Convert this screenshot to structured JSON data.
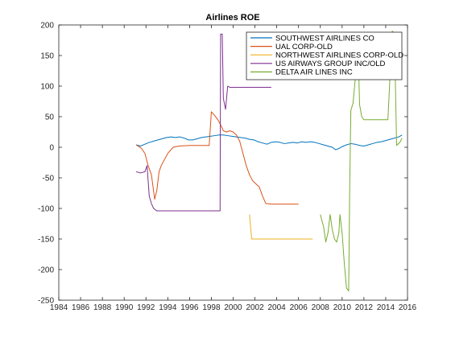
{
  "chart_data": {
    "type": "line",
    "title": "Airlines ROE",
    "xlabel": "",
    "ylabel": "",
    "xlim": [
      1984,
      2016
    ],
    "ylim": [
      -250,
      200
    ],
    "x_ticks": [
      1984,
      1986,
      1988,
      1990,
      1992,
      1994,
      1996,
      1998,
      2000,
      2002,
      2004,
      2006,
      2008,
      2010,
      2012,
      2014,
      2016
    ],
    "y_ticks": [
      -250,
      -200,
      -150,
      -100,
      -50,
      0,
      50,
      100,
      150,
      200
    ],
    "grid": false,
    "legend_position": "top-right",
    "series": [
      {
        "name": "SOUTHWEST AIRLINES CO",
        "color": "#0072bd",
        "points": [
          [
            1991.1,
            4
          ],
          [
            1991.5,
            2
          ],
          [
            1991.9,
            5
          ],
          [
            1992.3,
            8
          ],
          [
            1992.7,
            10
          ],
          [
            1993.1,
            12
          ],
          [
            1993.5,
            14
          ],
          [
            1993.9,
            16
          ],
          [
            1994.3,
            17
          ],
          [
            1994.7,
            16
          ],
          [
            1995.1,
            17
          ],
          [
            1995.5,
            15
          ],
          [
            1995.9,
            12
          ],
          [
            1996.3,
            12
          ],
          [
            1996.7,
            14
          ],
          [
            1997.1,
            16
          ],
          [
            1997.5,
            17
          ],
          [
            1997.9,
            18
          ],
          [
            1998.3,
            19
          ],
          [
            1998.7,
            20
          ],
          [
            1999.1,
            20
          ],
          [
            1999.5,
            19
          ],
          [
            1999.9,
            18
          ],
          [
            2000.3,
            17
          ],
          [
            2000.7,
            16
          ],
          [
            2001.1,
            15
          ],
          [
            2001.5,
            13
          ],
          [
            2001.9,
            12
          ],
          [
            2002.3,
            9
          ],
          [
            2002.7,
            7
          ],
          [
            2003.1,
            5
          ],
          [
            2003.5,
            8
          ],
          [
            2003.9,
            9
          ],
          [
            2004.3,
            8
          ],
          [
            2004.7,
            6
          ],
          [
            2005.1,
            7
          ],
          [
            2005.5,
            8
          ],
          [
            2005.9,
            7
          ],
          [
            2006.3,
            9
          ],
          [
            2006.7,
            8
          ],
          [
            2007.1,
            9
          ],
          [
            2007.5,
            8
          ],
          [
            2007.9,
            6
          ],
          [
            2008.3,
            4
          ],
          [
            2008.7,
            2
          ],
          [
            2009.1,
            0
          ],
          [
            2009.4,
            -4
          ],
          [
            2009.7,
            -2
          ],
          [
            2010.0,
            1
          ],
          [
            2010.4,
            4
          ],
          [
            2010.8,
            6
          ],
          [
            2011.2,
            5
          ],
          [
            2011.6,
            3
          ],
          [
            2012.0,
            2
          ],
          [
            2012.4,
            4
          ],
          [
            2012.8,
            6
          ],
          [
            2013.2,
            8
          ],
          [
            2013.6,
            9
          ],
          [
            2014.0,
            11
          ],
          [
            2014.4,
            13
          ],
          [
            2014.8,
            15
          ],
          [
            2015.2,
            17
          ],
          [
            2015.5,
            20
          ]
        ]
      },
      {
        "name": "UAL CORP-OLD",
        "color": "#d95319",
        "points": [
          [
            1991.1,
            4
          ],
          [
            1991.6,
            -2
          ],
          [
            1991.9,
            -10
          ],
          [
            1992.2,
            -30
          ],
          [
            1992.5,
            -45
          ],
          [
            1992.8,
            -85
          ],
          [
            1993.0,
            -70
          ],
          [
            1993.2,
            -40
          ],
          [
            1993.4,
            -30
          ],
          [
            1993.7,
            -20
          ],
          [
            1994.0,
            -10
          ],
          [
            1994.5,
            0
          ],
          [
            1995.0,
            2
          ],
          [
            1996.0,
            3
          ],
          [
            1997.0,
            3
          ],
          [
            1997.8,
            3
          ],
          [
            1998.0,
            58
          ],
          [
            1998.3,
            52
          ],
          [
            1998.6,
            45
          ],
          [
            1998.9,
            35
          ],
          [
            1999.1,
            27
          ],
          [
            1999.4,
            25
          ],
          [
            1999.7,
            27
          ],
          [
            2000.0,
            25
          ],
          [
            2000.3,
            20
          ],
          [
            2000.6,
            10
          ],
          [
            2000.9,
            -10
          ],
          [
            2001.2,
            -30
          ],
          [
            2001.5,
            -45
          ],
          [
            2001.8,
            -55
          ],
          [
            2002.1,
            -60
          ],
          [
            2002.4,
            -65
          ],
          [
            2002.7,
            -80
          ],
          [
            2003.0,
            -92
          ],
          [
            2003.5,
            -93
          ],
          [
            2004.5,
            -93
          ],
          [
            2005.5,
            -93
          ],
          [
            2006.0,
            -93
          ]
        ]
      },
      {
        "name": "NORTHWEST AIRLINES CORP-OLD",
        "color": "#edb120",
        "points": [
          [
            2001.5,
            -110
          ],
          [
            2001.7,
            -150
          ],
          [
            2003.0,
            -150
          ],
          [
            2004.5,
            -150
          ],
          [
            2006.0,
            -150
          ],
          [
            2007.3,
            -150
          ]
        ]
      },
      {
        "name": "US AIRWAYS GROUP INC/OLD",
        "color": "#7e2f8e",
        "points": [
          [
            1991.1,
            -40
          ],
          [
            1991.5,
            -42
          ],
          [
            1991.9,
            -40
          ],
          [
            1992.1,
            -30
          ],
          [
            1992.3,
            -80
          ],
          [
            1992.5,
            -92
          ],
          [
            1992.7,
            -100
          ],
          [
            1993.0,
            -104
          ],
          [
            1994.0,
            -104
          ],
          [
            1995.0,
            -104
          ],
          [
            1996.0,
            -104
          ],
          [
            1997.0,
            -104
          ],
          [
            1998.0,
            -104
          ],
          [
            1998.8,
            -104
          ],
          [
            1998.85,
            185
          ],
          [
            1999.0,
            185
          ],
          [
            1999.1,
            80
          ],
          [
            1999.3,
            62
          ],
          [
            1999.5,
            100
          ],
          [
            1999.7,
            98
          ],
          [
            2000.5,
            98
          ],
          [
            2001.5,
            98
          ],
          [
            2002.5,
            98
          ],
          [
            2003.5,
            98
          ]
        ]
      },
      {
        "name": "DELTA AIR LINES INC",
        "color": "#77ac30",
        "points": [
          [
            2008.0,
            -110
          ],
          [
            2008.3,
            -130
          ],
          [
            2008.5,
            -155
          ],
          [
            2008.7,
            -140
          ],
          [
            2008.9,
            -110
          ],
          [
            2009.1,
            -135
          ],
          [
            2009.3,
            -150
          ],
          [
            2009.5,
            -155
          ],
          [
            2009.7,
            -140
          ],
          [
            2009.8,
            -110
          ],
          [
            2010.0,
            -140
          ],
          [
            2010.2,
            -190
          ],
          [
            2010.4,
            -230
          ],
          [
            2010.6,
            -235
          ],
          [
            2010.7,
            -60
          ],
          [
            2010.8,
            60
          ],
          [
            2011.0,
            72
          ],
          [
            2011.2,
            110
          ],
          [
            2011.4,
            125
          ],
          [
            2011.5,
            140
          ],
          [
            2011.6,
            70
          ],
          [
            2011.8,
            50
          ],
          [
            2012.0,
            45
          ],
          [
            2012.5,
            45
          ],
          [
            2013.0,
            45
          ],
          [
            2013.5,
            45
          ],
          [
            2014.0,
            45
          ],
          [
            2014.2,
            45
          ],
          [
            2014.6,
            190
          ],
          [
            2014.8,
            185
          ],
          [
            2015.0,
            3
          ],
          [
            2015.3,
            8
          ],
          [
            2015.5,
            15
          ]
        ]
      }
    ]
  }
}
